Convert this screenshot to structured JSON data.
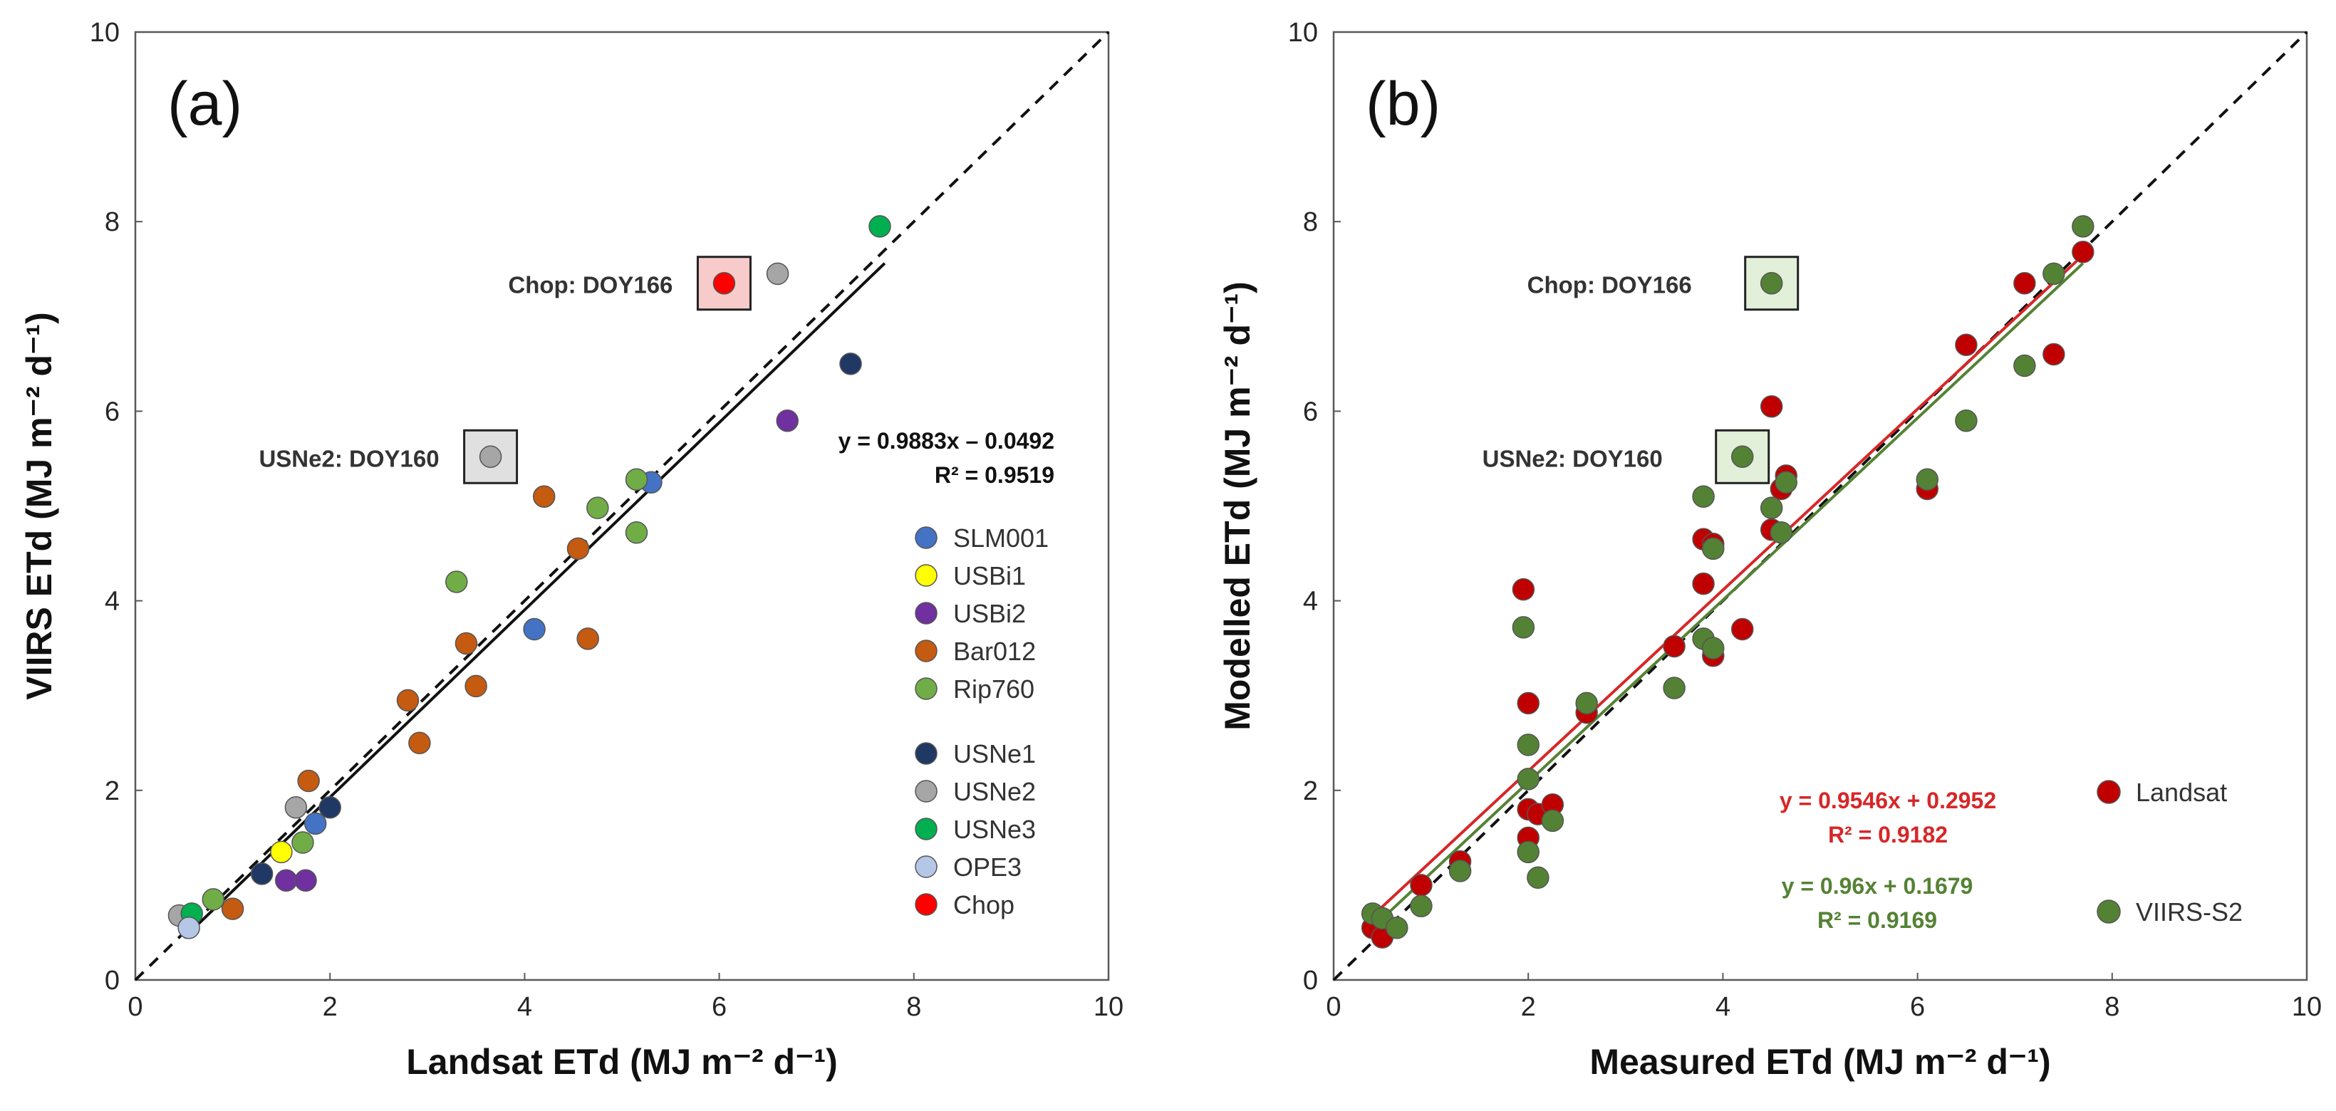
{
  "chart_data": [
    {
      "type": "scatter",
      "panel_label": "(a)",
      "xlabel": "Landsat ETd (MJ m⁻² d⁻¹)",
      "ylabel": "VIIRS ETd (MJ m⁻² d⁻¹)",
      "xlim": [
        0,
        10
      ],
      "ylim": [
        0,
        10
      ],
      "xticks": [
        "0",
        "2",
        "4",
        "6",
        "8",
        "10"
      ],
      "yticks": [
        "0",
        "2",
        "4",
        "6",
        "8",
        "10"
      ],
      "grid": false,
      "legend_position": "right",
      "one_to_one_line": true,
      "fit": {
        "slope": 0.9883,
        "intercept": -0.0492,
        "x_range": [
          0.5,
          7.7
        ],
        "equation": "y = 0.9883x – 0.0492",
        "r2": "R² = 0.9519",
        "color": "#111111"
      },
      "series": [
        {
          "name": "SLM001",
          "color": "#4472C4",
          "points": [
            [
              1.85,
              1.65
            ],
            [
              4.1,
              3.7
            ],
            [
              5.3,
              5.25
            ]
          ]
        },
        {
          "name": "USBi1",
          "color": "#FFFF00",
          "points": [
            [
              1.5,
              1.35
            ]
          ]
        },
        {
          "name": "USBi2",
          "color": "#7030A0",
          "points": [
            [
              1.55,
              1.05
            ],
            [
              1.75,
              1.05
            ],
            [
              6.7,
              5.9
            ]
          ]
        },
        {
          "name": "Bar012",
          "color": "#C55A11",
          "points": [
            [
              1.0,
              0.75
            ],
            [
              1.78,
              2.1
            ],
            [
              2.8,
              2.95
            ],
            [
              2.92,
              2.5
            ],
            [
              3.4,
              3.55
            ],
            [
              3.5,
              3.1
            ],
            [
              4.2,
              5.1
            ],
            [
              4.55,
              4.55
            ],
            [
              4.65,
              3.6
            ]
          ]
        },
        {
          "name": "Rip760",
          "color": "#70AD47",
          "points": [
            [
              0.8,
              0.85
            ],
            [
              1.72,
              1.45
            ],
            [
              3.3,
              4.2
            ],
            [
              4.75,
              4.98
            ],
            [
              5.15,
              4.72
            ],
            [
              5.15,
              5.28
            ]
          ]
        },
        {
          "name": "USNe1",
          "color": "#1F3864",
          "points": [
            [
              1.3,
              1.12
            ],
            [
              2.0,
              1.82
            ],
            [
              7.35,
              6.5
            ]
          ]
        },
        {
          "name": "USNe2",
          "color": "#A6A6A6",
          "points": [
            [
              0.45,
              0.68
            ],
            [
              1.65,
              1.82
            ],
            [
              3.65,
              5.52
            ],
            [
              6.6,
              7.45
            ]
          ]
        },
        {
          "name": "USNe3",
          "color": "#00B050",
          "points": [
            [
              0.58,
              0.7
            ],
            [
              7.65,
              7.95
            ]
          ]
        },
        {
          "name": "OPE3",
          "color": "#B4C7E7",
          "points": [
            [
              0.55,
              0.55
            ]
          ]
        },
        {
          "name": "Chop",
          "color": "#FF0000",
          "points": [
            [
              6.05,
              7.35
            ]
          ]
        }
      ],
      "annotations": [
        {
          "text": "Chop: DOY166",
          "x": 6.05,
          "y": 7.35,
          "box_fill": "#F8CBCB"
        },
        {
          "text": "USNe2: DOY160",
          "x": 3.65,
          "y": 5.52,
          "box_fill": "#E0E0E0"
        }
      ]
    },
    {
      "type": "scatter",
      "panel_label": "(b)",
      "xlabel": "Measured ETd (MJ m⁻² d⁻¹)",
      "ylabel": "Modelled ETd (MJ m⁻² d⁻¹)",
      "xlim": [
        0,
        10
      ],
      "ylim": [
        0,
        10
      ],
      "xticks": [
        "0",
        "2",
        "4",
        "6",
        "8",
        "10"
      ],
      "yticks": [
        "0",
        "2",
        "4",
        "6",
        "8",
        "10"
      ],
      "grid": false,
      "legend_position": "bottom-right",
      "one_to_one_line": true,
      "fits": [
        {
          "name": "Landsat",
          "slope": 0.9546,
          "intercept": 0.2952,
          "x_range": [
            0.4,
            7.7
          ],
          "equation": "y = 0.9546x + 0.2952",
          "r2": "R² = 0.9182",
          "color": "#D62728"
        },
        {
          "name": "VIIRS-S2",
          "slope": 0.96,
          "intercept": 0.1679,
          "x_range": [
            0.4,
            7.7
          ],
          "equation": "y = 0.96x + 0.1679",
          "r2": "R² = 0.9169",
          "color": "#548235"
        }
      ],
      "series": [
        {
          "name": "Landsat",
          "color": "#C00000",
          "points": [
            [
              0.4,
              0.55
            ],
            [
              0.5,
              0.45
            ],
            [
              0.9,
              1.0
            ],
            [
              1.3,
              1.25
            ],
            [
              1.95,
              4.12
            ],
            [
              2.0,
              2.92
            ],
            [
              2.0,
              1.8
            ],
            [
              2.0,
              1.5
            ],
            [
              2.1,
              1.75
            ],
            [
              2.25,
              1.85
            ],
            [
              2.6,
              2.82
            ],
            [
              3.5,
              3.52
            ],
            [
              3.8,
              4.65
            ],
            [
              3.8,
              4.18
            ],
            [
              3.9,
              4.6
            ],
            [
              3.9,
              3.42
            ],
            [
              4.2,
              3.7
            ],
            [
              4.5,
              6.05
            ],
            [
              4.5,
              4.75
            ],
            [
              4.6,
              5.18
            ],
            [
              4.65,
              5.32
            ],
            [
              6.1,
              5.18
            ],
            [
              6.5,
              6.7
            ],
            [
              7.1,
              7.35
            ],
            [
              7.4,
              6.6
            ],
            [
              7.7,
              7.68
            ]
          ]
        },
        {
          "name": "VIIRS-S2",
          "color": "#548235",
          "points": [
            [
              0.4,
              0.7
            ],
            [
              0.5,
              0.65
            ],
            [
              0.65,
              0.55
            ],
            [
              0.9,
              0.78
            ],
            [
              1.3,
              1.15
            ],
            [
              1.95,
              3.72
            ],
            [
              2.0,
              2.48
            ],
            [
              2.0,
              2.12
            ],
            [
              2.0,
              1.35
            ],
            [
              2.1,
              1.08
            ],
            [
              2.25,
              1.68
            ],
            [
              2.6,
              2.92
            ],
            [
              3.5,
              3.08
            ],
            [
              3.8,
              5.1
            ],
            [
              3.8,
              3.6
            ],
            [
              3.9,
              4.55
            ],
            [
              3.9,
              3.5
            ],
            [
              4.2,
              5.52
            ],
            [
              4.5,
              7.35
            ],
            [
              4.5,
              4.98
            ],
            [
              4.6,
              4.72
            ],
            [
              4.65,
              5.25
            ],
            [
              6.1,
              5.28
            ],
            [
              6.5,
              5.9
            ],
            [
              7.1,
              6.48
            ],
            [
              7.4,
              7.45
            ],
            [
              7.7,
              7.95
            ]
          ]
        }
      ],
      "annotations": [
        {
          "text": "Chop: DOY166",
          "x": 4.5,
          "y": 7.35,
          "box_fill": "#E2EFD9"
        },
        {
          "text": "USNe2: DOY160",
          "x": 4.2,
          "y": 5.52,
          "box_fill": "#E2EFD9"
        }
      ]
    }
  ]
}
